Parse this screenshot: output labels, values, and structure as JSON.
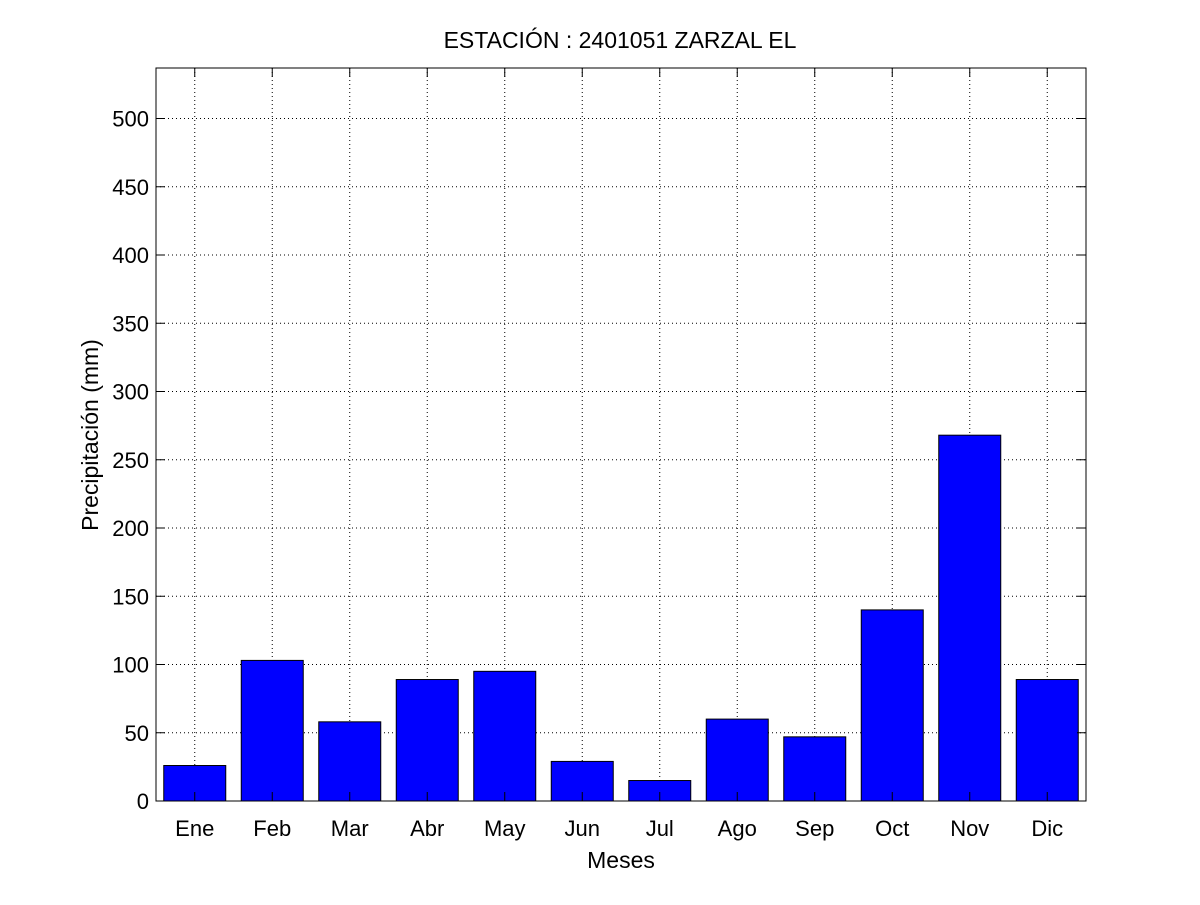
{
  "chart_data": {
    "type": "bar",
    "title": "ESTACIÓN :  2401051  ZARZAL EL",
    "xlabel": "Meses",
    "ylabel": "Precipitación (mm)",
    "categories": [
      "Ene",
      "Feb",
      "Mar",
      "Abr",
      "May",
      "Jun",
      "Jul",
      "Ago",
      "Sep",
      "Oct",
      "Nov",
      "Dic"
    ],
    "values": [
      26,
      103,
      58,
      89,
      95,
      29,
      15,
      60,
      47,
      140,
      268,
      89
    ],
    "ylim": [
      0,
      537
    ],
    "yticks": [
      0,
      50,
      100,
      150,
      200,
      250,
      300,
      350,
      400,
      450,
      500
    ],
    "grid": true,
    "bar_color": "#0000ff"
  }
}
